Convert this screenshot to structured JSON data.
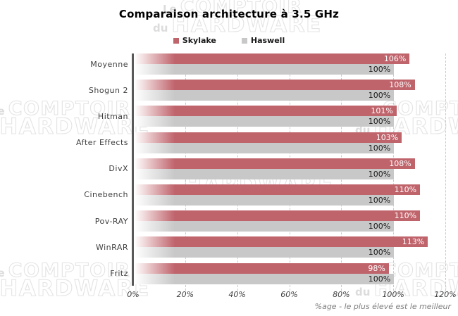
{
  "title": "Comparaison architecture à 3.5 GHz",
  "watermark": {
    "small1": "Le",
    "big1": "COMPTOIR",
    "small2": "du",
    "big2": "HARDWARE"
  },
  "legend": {
    "items": [
      {
        "label": "Skylake",
        "color": "#c0646c"
      },
      {
        "label": "Haswell",
        "color": "#c8c8c8"
      }
    ]
  },
  "footer_note": "%age - le plus élevé est le meilleur",
  "colors": {
    "skylake_bar": "#c0646c",
    "haswell_bar": "#c8c8c8",
    "axis_line": "#595959",
    "gridline": "#c9c9c9"
  },
  "chart_data": {
    "type": "bar",
    "orientation": "horizontal",
    "title": "Comparaison architecture à 3.5 GHz",
    "categories": [
      "Moyenne",
      "Shogun 2",
      "Hitman",
      "After Effects",
      "DivX",
      "Cinebench",
      "Pov-RAY",
      "WinRAR",
      "Fritz"
    ],
    "series": [
      {
        "name": "Skylake",
        "color": "#c0646c",
        "values": [
          106,
          108,
          101,
          103,
          108,
          110,
          110,
          113,
          98
        ]
      },
      {
        "name": "Haswell",
        "color": "#c8c8c8",
        "values": [
          100,
          100,
          100,
          100,
          100,
          100,
          100,
          100,
          100
        ]
      }
    ],
    "value_label_format": "{v}%",
    "xlim": [
      0,
      120
    ],
    "x_ticks": [
      "0%",
      "20%",
      "40%",
      "60%",
      "80%",
      "100%",
      "120%"
    ],
    "grid": "dashed-vertical",
    "legend_position": "top-center",
    "note": "%age - le plus élevé est le meilleur"
  }
}
